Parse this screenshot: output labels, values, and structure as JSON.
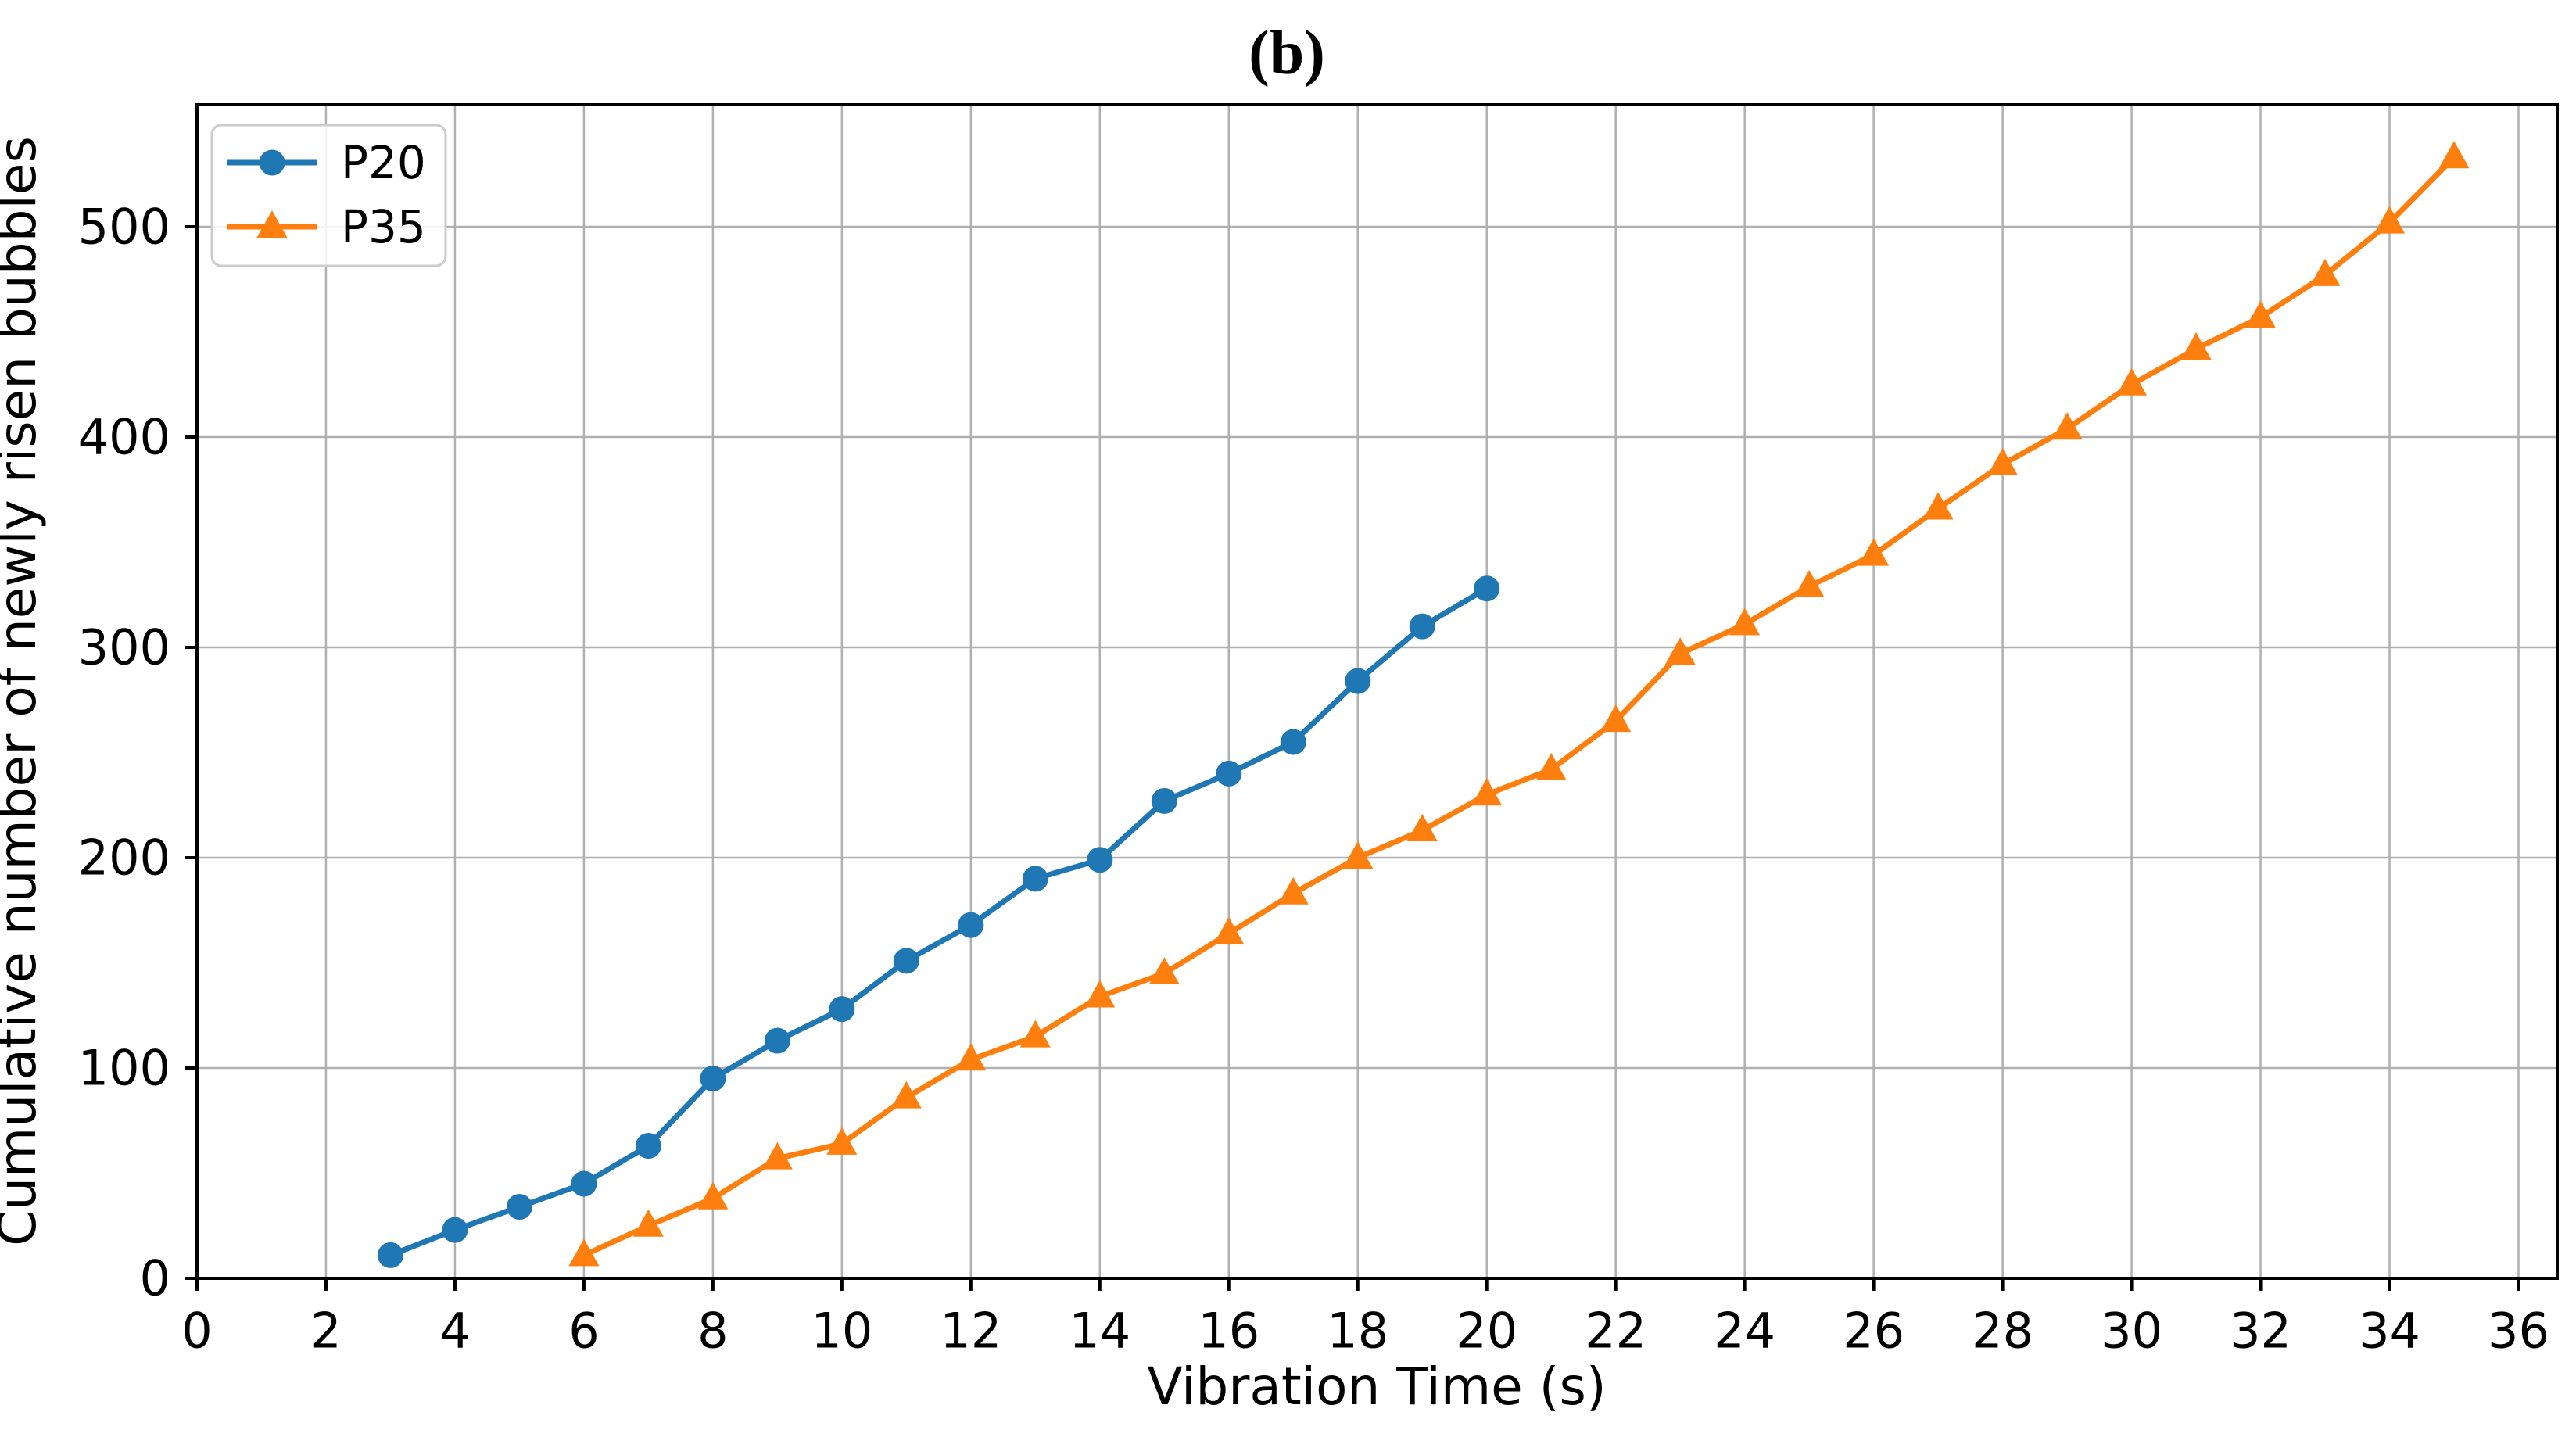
{
  "figure": {
    "background": "#ffffff"
  },
  "chart_data": {
    "type": "line",
    "title": "(b)",
    "xlabel": "Vibration Time (s)",
    "ylabel": "Cumulative number of newly risen bubbles",
    "xlim": [
      0,
      36.6
    ],
    "ylim": [
      0,
      558
    ],
    "xticks": [
      0,
      2,
      4,
      6,
      8,
      10,
      12,
      14,
      16,
      18,
      20,
      22,
      24,
      26,
      28,
      30,
      32,
      34,
      36
    ],
    "yticks": [
      0,
      100,
      200,
      300,
      400,
      500
    ],
    "grid": true,
    "legend_position": "upper left",
    "colors": {
      "grid": "#b0b0b0",
      "axis": "#000000",
      "legend_border": "#cccccc",
      "p20": "#1f77b4",
      "p35": "#ff7f0e"
    },
    "series": [
      {
        "name": "P20",
        "color": "#1f77b4",
        "marker": "circle",
        "x": [
          3,
          4,
          5,
          6,
          7,
          8,
          9,
          10,
          11,
          12,
          13,
          14,
          15,
          16,
          17,
          18,
          19,
          20
        ],
        "y": [
          11,
          23,
          34,
          45,
          63,
          95,
          113,
          128,
          151,
          168,
          190,
          199,
          227,
          240,
          255,
          284,
          310,
          328
        ]
      },
      {
        "name": "P35",
        "color": "#ff7f0e",
        "marker": "triangle",
        "x": [
          6,
          7,
          8,
          9,
          10,
          11,
          12,
          13,
          14,
          15,
          16,
          17,
          18,
          19,
          20,
          21,
          22,
          23,
          24,
          25,
          26,
          27,
          28,
          29,
          30,
          31,
          32,
          33,
          34,
          35
        ],
        "y": [
          11,
          25,
          38,
          57,
          64,
          86,
          104,
          115,
          134,
          145,
          164,
          183,
          200,
          213,
          230,
          242,
          265,
          297,
          311,
          329,
          344,
          366,
          387,
          404,
          425,
          442,
          457,
          477,
          502,
          533
        ]
      }
    ]
  }
}
